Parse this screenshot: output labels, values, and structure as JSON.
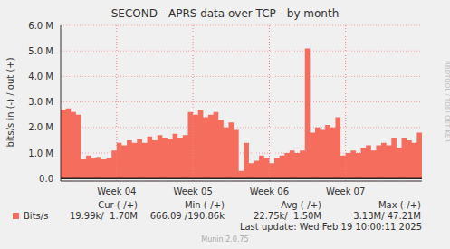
{
  "chart_data": {
    "type": "area",
    "title": "SECOND - APRS data over TCP - by month",
    "y_label": "bits/s in (-) / out (+)",
    "categories": [
      null,
      null,
      null,
      null,
      null,
      null,
      null,
      null,
      null,
      null,
      null,
      "Week 04",
      null,
      null,
      null,
      null,
      null,
      null,
      null,
      null,
      null,
      null,
      null,
      null,
      null,
      null,
      "Week 05",
      null,
      null,
      null,
      null,
      null,
      null,
      null,
      null,
      null,
      null,
      null,
      null,
      null,
      null,
      "Week 06",
      null,
      null,
      null,
      null,
      null,
      null,
      null,
      null,
      null,
      null,
      null,
      null,
      null,
      null,
      "Week 07",
      null,
      null,
      null,
      null,
      null,
      null,
      null,
      null,
      null,
      null,
      null,
      null,
      null,
      null,
      null
    ],
    "series": [
      {
        "name": "Bits/s",
        "color": "#f46d5d",
        "values": [
          2700000,
          2750000,
          2600000,
          2500000,
          750000,
          900000,
          800000,
          850000,
          750000,
          800000,
          1100000,
          1400000,
          1300000,
          1500000,
          1400000,
          1550000,
          1400000,
          1650000,
          1500000,
          1700000,
          1600000,
          1550000,
          1750000,
          1600000,
          1700000,
          2600000,
          2500000,
          2700000,
          2400000,
          2500000,
          2600000,
          2300000,
          2000000,
          2200000,
          1900000,
          300000,
          1400000,
          600000,
          700000,
          900000,
          800000,
          600000,
          800000,
          900000,
          1000000,
          1100000,
          1000000,
          1100000,
          5100000,
          1800000,
          2000000,
          1900000,
          2100000,
          2000000,
          2400000,
          900000,
          1000000,
          1100000,
          1000000,
          1200000,
          1300000,
          1100000,
          1300000,
          1400000,
          1300000,
          1600000,
          1200000,
          1600000,
          1500000,
          1400000,
          1800000,
          1700000
        ]
      }
    ],
    "ylim": [
      -100000,
      6000000
    ],
    "yticks": [
      {
        "value": 0,
        "label": "0.0"
      },
      {
        "value": 1000000,
        "label": "1.0 M"
      },
      {
        "value": 2000000,
        "label": "2.0 M"
      },
      {
        "value": 3000000,
        "label": "3.0 M"
      },
      {
        "value": 4000000,
        "label": "4.0 M"
      },
      {
        "value": 5000000,
        "label": "5.0 M"
      },
      {
        "value": 6000000,
        "label": "6.0 M"
      }
    ],
    "grid": true,
    "legend": "bottom",
    "stats": {
      "headers": [
        "Cur (-/+)",
        "Min (-/+)",
        "Avg (-/+)",
        "Max (-/+)"
      ],
      "values": [
        "19.99k/  1.70M",
        "666.09 /190.86k",
        "22.75k/  1.50M",
        "3.13M/ 47.21M"
      ]
    },
    "last_update": "Last update: Wed Feb 19 10:00:11 2025",
    "footer": "Munin 2.0.75",
    "watermark": "RRDTOOL / TOBI OETIKER"
  }
}
